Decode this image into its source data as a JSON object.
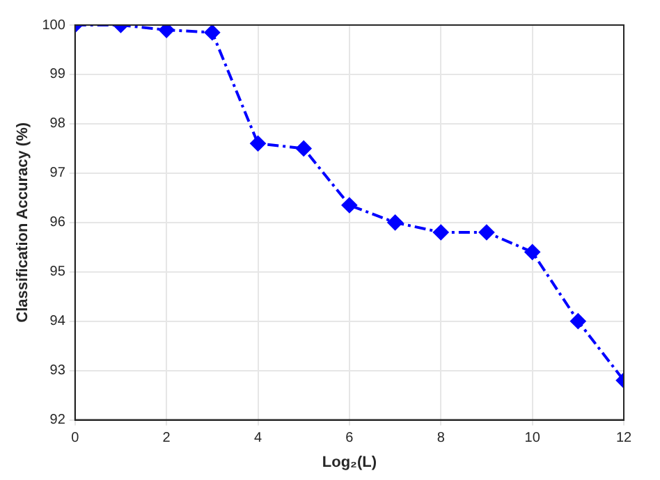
{
  "chart_data": {
    "type": "line",
    "xlabel": "Log₂(L)",
    "ylabel": "Classification Accuracy (%)",
    "x": [
      0,
      1,
      2,
      3,
      4,
      5,
      6,
      7,
      8,
      9,
      10,
      11,
      12
    ],
    "series": [
      {
        "color": "#0000ff",
        "values": [
          100,
          100,
          99.9,
          99.85,
          97.6,
          97.5,
          96.35,
          96.0,
          95.8,
          95.8,
          95.4,
          94.0,
          92.8
        ]
      }
    ],
    "xlim": [
      0,
      12
    ],
    "xticks": [
      0,
      2,
      4,
      6,
      8,
      10,
      12
    ],
    "ylim": [
      92,
      100
    ],
    "yticks": [
      92,
      93,
      94,
      95,
      96,
      97,
      98,
      99,
      100
    ],
    "grid": true,
    "legend": false,
    "marker": "diamond",
    "line_style": "dashed"
  }
}
